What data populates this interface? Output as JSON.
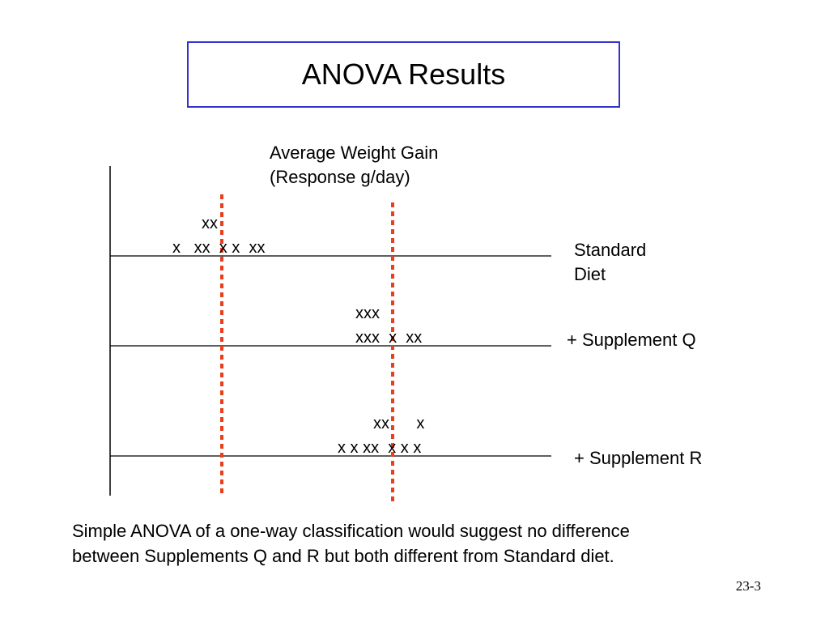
{
  "slide": {
    "title": "ANOVA Results",
    "axis_title_line1": "Average Weight Gain",
    "axis_title_line2": "(Response g/day)",
    "footnote": "Simple ANOVA of a one-way classification would suggest no difference between Supplements Q and R but both different from Standard diet.",
    "slide_number": "23-3"
  },
  "groups": [
    {
      "label_line1": "Standard",
      "label_line2": "Diet",
      "dots_top": "xx",
      "dots_bottom": "x   xx  x x  xx"
    },
    {
      "label_line1": "+ Supplement Q",
      "label_line2": "",
      "dots_top": "xxx",
      "dots_bottom": "xxx  x  xx"
    },
    {
      "label_line1": "+ Supplement R",
      "label_line2": "",
      "dots_top": "xx      x",
      "dots_bottom": "x x xx  x x x"
    }
  ],
  "colors": {
    "title_border": "#3333cc",
    "mean_line": "#e8401c",
    "axis_line": "#000000"
  }
}
